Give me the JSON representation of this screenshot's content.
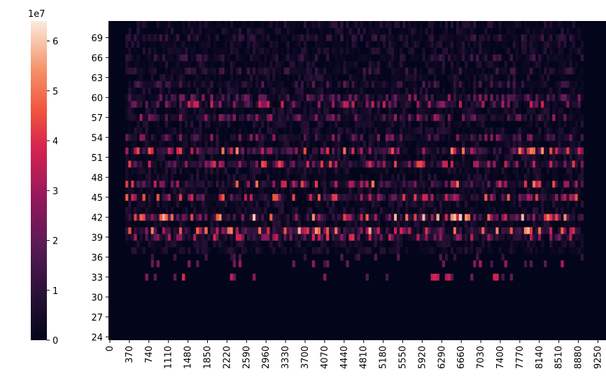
{
  "chart_data": {
    "type": "heatmap",
    "title": "",
    "xlabel": "",
    "ylabel": "",
    "colormap": "rocket",
    "colors": {
      "low": "#03051a",
      "mid_low": "#4c1d4b",
      "mid": "#a11a5b",
      "mid_high": "#e83f3f",
      "high": "#f6a47c",
      "top": "#faebdd"
    },
    "x_range": [
      0,
      9430
    ],
    "x_ticks": [
      "0",
      "370",
      "740",
      "1110",
      "1480",
      "1850",
      "2220",
      "2590",
      "2960",
      "3330",
      "3700",
      "4070",
      "4440",
      "4810",
      "5180",
      "5550",
      "5920",
      "6290",
      "6660",
      "7030",
      "7400",
      "7770",
      "8140",
      "8510",
      "8880",
      "9250"
    ],
    "y_range": [
      24,
      72
    ],
    "y_ticks": [
      "24",
      "27",
      "30",
      "33",
      "36",
      "39",
      "42",
      "45",
      "48",
      "51",
      "54",
      "57",
      "60",
      "63",
      "66",
      "69"
    ],
    "colorbar": {
      "min": 0,
      "max": 6.4,
      "multiplier_label": "1e7",
      "ticks": [
        "0",
        "1",
        "2",
        "3",
        "4",
        "5",
        "6"
      ]
    },
    "row_intensity": [
      {
        "pitch": 24,
        "value": 0.02
      },
      {
        "pitch": 30,
        "value": 0.03
      },
      {
        "pitch": 33,
        "value": 2.5
      },
      {
        "pitch": 35,
        "value": 2.0
      },
      {
        "pitch": 36,
        "value": 1.2
      },
      {
        "pitch": 39,
        "value": 2.6
      },
      {
        "pitch": 40,
        "value": 3.6
      },
      {
        "pitch": 42,
        "value": 3.8
      },
      {
        "pitch": 45,
        "value": 3.0
      },
      {
        "pitch": 47,
        "value": 3.2
      },
      {
        "pitch": 50,
        "value": 2.8
      },
      {
        "pitch": 52,
        "value": 3.4
      },
      {
        "pitch": 54,
        "value": 1.8
      },
      {
        "pitch": 57,
        "value": 2.0
      },
      {
        "pitch": 59,
        "value": 2.4
      },
      {
        "pitch": 60,
        "value": 1.8
      },
      {
        "pitch": 62,
        "value": 1.2
      },
      {
        "pitch": 64,
        "value": 1.0
      },
      {
        "pitch": 66,
        "value": 1.0
      },
      {
        "pitch": 69,
        "value": 0.9
      },
      {
        "pitch": 71,
        "value": 0.7
      }
    ]
  }
}
